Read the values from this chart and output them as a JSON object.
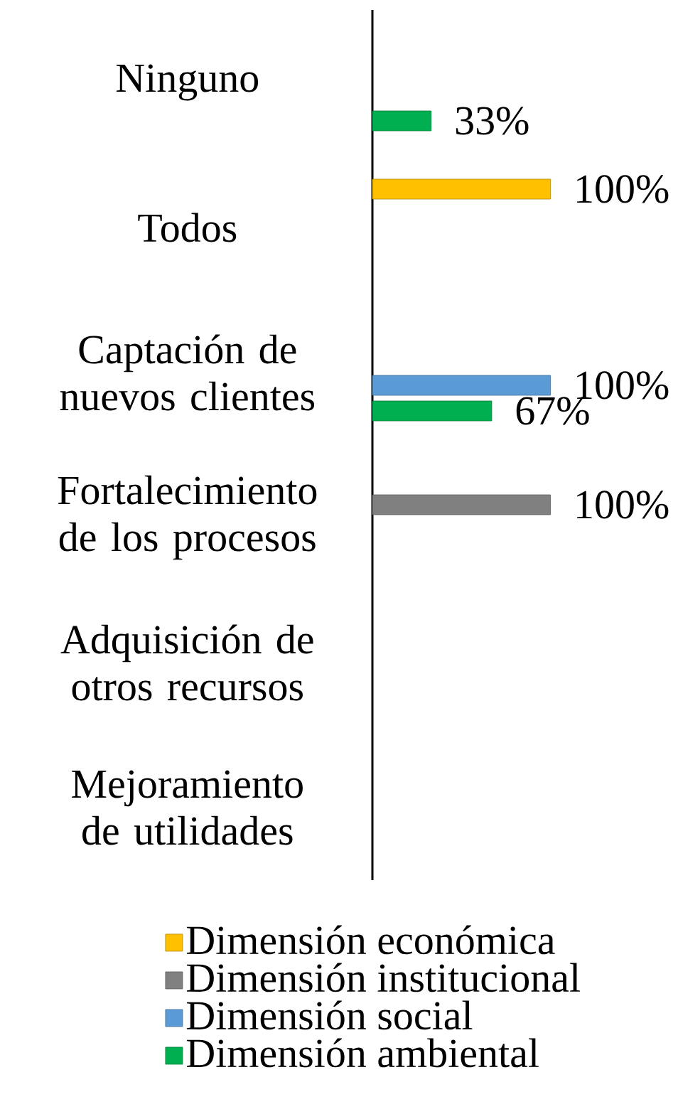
{
  "chart_data": {
    "type": "bar",
    "orientation": "horizontal",
    "legend": "bottom",
    "categories": [
      "Ninguno",
      "Todos",
      "Captación de nuevos clientes",
      "Fortalecimiento de los procesos",
      "Adquisición de otros recursos",
      "Mejoramiento de utilidades"
    ],
    "series": [
      {
        "name": "Dimensión económica",
        "color": "#ffc000",
        "values": [
          null,
          100,
          null,
          null,
          null,
          null
        ],
        "value_labels": [
          null,
          "100%",
          null,
          null,
          null,
          null
        ]
      },
      {
        "name": "Dimensión institucional",
        "color": "#808080",
        "values": [
          null,
          null,
          null,
          100,
          null,
          null
        ],
        "value_labels": [
          null,
          null,
          null,
          "100%",
          null,
          null
        ]
      },
      {
        "name": "Dimensión social",
        "color": "#5b9bd5",
        "values": [
          null,
          null,
          100,
          null,
          null,
          null
        ],
        "value_labels": [
          null,
          null,
          "100%",
          null,
          null,
          null
        ]
      },
      {
        "name": "Dimensión ambiental",
        "color": "#00b050",
        "values": [
          33,
          null,
          67,
          null,
          null,
          null
        ],
        "value_labels": [
          "33%",
          null,
          "67%",
          null,
          null,
          null
        ]
      }
    ]
  }
}
